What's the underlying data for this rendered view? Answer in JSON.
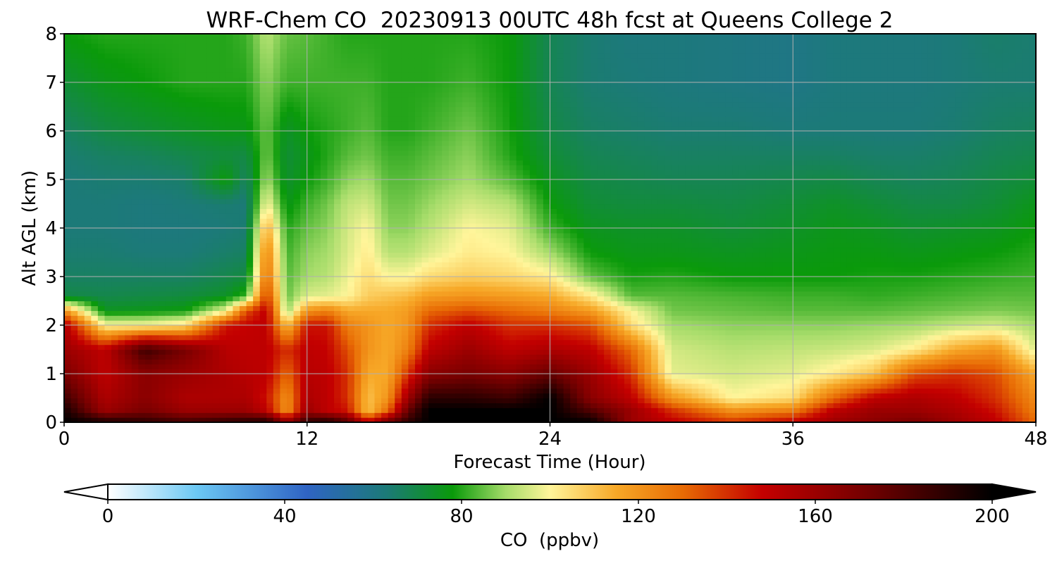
{
  "chart_data": {
    "type": "heatmap",
    "title": "WRF-Chem CO  20230913 00UTC 48h fcst at Queens College 2",
    "xlabel": "Forecast Time (Hour)",
    "ylabel": "Alt AGL (km)",
    "xlim": [
      0,
      48
    ],
    "ylim": [
      0,
      8
    ],
    "x_ticks": [
      0,
      12,
      24,
      36,
      48
    ],
    "y_ticks": [
      0,
      1,
      2,
      3,
      4,
      5,
      6,
      7,
      8
    ],
    "grid": true,
    "colorbar": {
      "label": "CO  (ppbv)",
      "range": [
        0,
        200
      ],
      "ticks": [
        0,
        40,
        80,
        120,
        160,
        200
      ],
      "extend": "both",
      "stops": [
        {
          "value": 0,
          "color": "#ffffff"
        },
        {
          "value": 20,
          "color": "#6cc8f4"
        },
        {
          "value": 45,
          "color": "#2f64c4"
        },
        {
          "value": 63,
          "color": "#1c7a78"
        },
        {
          "value": 78,
          "color": "#0a9a0a"
        },
        {
          "value": 90,
          "color": "#a6dc6a"
        },
        {
          "value": 100,
          "color": "#fff59a"
        },
        {
          "value": 115,
          "color": "#f7a827"
        },
        {
          "value": 130,
          "color": "#e86b04"
        },
        {
          "value": 148,
          "color": "#c40000"
        },
        {
          "value": 172,
          "color": "#720000"
        },
        {
          "value": 200,
          "color": "#000000"
        }
      ]
    },
    "profile_hours": [
      0,
      2,
      4,
      6,
      8,
      9,
      10,
      11,
      12,
      13,
      14,
      15,
      16,
      17,
      18,
      20,
      22,
      24,
      26,
      28,
      30,
      33,
      36,
      38,
      40,
      42,
      44,
      46,
      48
    ],
    "profile_heights_km": [
      0,
      0.25,
      0.5,
      1,
      1.5,
      2,
      2.3,
      2.6,
      3,
      3.5,
      4,
      4.5,
      5,
      5.5,
      6,
      7,
      8
    ],
    "profiles": [
      [
        200,
        195,
        185,
        170,
        160,
        155,
        120,
        70,
        66,
        64,
        63,
        63,
        63,
        64,
        66,
        72,
        78
      ],
      [
        195,
        160,
        155,
        150,
        150,
        100,
        75,
        69,
        66,
        64,
        63,
        63,
        64,
        66,
        70,
        76,
        80
      ],
      [
        190,
        170,
        165,
        165,
        185,
        100,
        76,
        70,
        66,
        63,
        62,
        62,
        64,
        67,
        72,
        78,
        80
      ],
      [
        185,
        160,
        155,
        160,
        170,
        105,
        78,
        71,
        66,
        63,
        62,
        63,
        65,
        69,
        74,
        80,
        80
      ],
      [
        190,
        160,
        155,
        155,
        152,
        145,
        98,
        74,
        69,
        65,
        63,
        64,
        78,
        71,
        76,
        80,
        80
      ],
      [
        192,
        160,
        155,
        152,
        150,
        148,
        135,
        82,
        71,
        66,
        64,
        63,
        66,
        70,
        76,
        80,
        82
      ],
      [
        195,
        150,
        145,
        150,
        150,
        150,
        150,
        140,
        130,
        125,
        115,
        100,
        90,
        86,
        85,
        88,
        92
      ],
      [
        165,
        120,
        120,
        130,
        140,
        110,
        88,
        85,
        84,
        82,
        80,
        76,
        73,
        72,
        74,
        82,
        85
      ],
      [
        190,
        160,
        155,
        152,
        150,
        145,
        120,
        96,
        90,
        88,
        85,
        82,
        78,
        76,
        78,
        82,
        84
      ],
      [
        195,
        150,
        150,
        150,
        148,
        145,
        125,
        97,
        92,
        90,
        88,
        86,
        82,
        80,
        80,
        82,
        82
      ],
      [
        180,
        145,
        140,
        140,
        135,
        125,
        115,
        100,
        98,
        96,
        95,
        93,
        88,
        84,
        82,
        82,
        80
      ],
      [
        150,
        110,
        110,
        115,
        120,
        120,
        115,
        108,
        105,
        102,
        100,
        95,
        90,
        86,
        84,
        82,
        80
      ],
      [
        175,
        130,
        120,
        115,
        115,
        115,
        115,
        110,
        100,
        92,
        88,
        86,
        84,
        82,
        80,
        80,
        80
      ],
      [
        190,
        175,
        160,
        140,
        125,
        120,
        118,
        112,
        100,
        92,
        88,
        86,
        84,
        82,
        80,
        80,
        80
      ],
      [
        200,
        200,
        190,
        165,
        150,
        140,
        130,
        118,
        105,
        96,
        92,
        89,
        86,
        84,
        82,
        80,
        80
      ],
      [
        200,
        200,
        190,
        170,
        160,
        150,
        135,
        120,
        108,
        102,
        100,
        95,
        90,
        88,
        86,
        82,
        80
      ],
      [
        200,
        200,
        185,
        165,
        150,
        140,
        130,
        118,
        106,
        100,
        97,
        92,
        84,
        80,
        79,
        78,
        78
      ],
      [
        200,
        200,
        200,
        175,
        155,
        140,
        125,
        115,
        102,
        90,
        82,
        78,
        75,
        72,
        70,
        68,
        68
      ],
      [
        200,
        180,
        165,
        160,
        150,
        135,
        118,
        103,
        85,
        78,
        75,
        72,
        70,
        68,
        66,
        64,
        64
      ],
      [
        160,
        160,
        150,
        140,
        130,
        105,
        100,
        84,
        79,
        76,
        74,
        71,
        69,
        67,
        65,
        63,
        62
      ],
      [
        150,
        140,
        120,
        97,
        95,
        90,
        86,
        84,
        80,
        76,
        74,
        71,
        68,
        66,
        64,
        62,
        62
      ],
      [
        140,
        120,
        100,
        95,
        92,
        88,
        85,
        83,
        78,
        75,
        72,
        70,
        68,
        66,
        64,
        61,
        61
      ],
      [
        150,
        125,
        105,
        97,
        93,
        88,
        84,
        82,
        78,
        76,
        74,
        72,
        69,
        66,
        63,
        60,
        60
      ],
      [
        160,
        150,
        130,
        102,
        94,
        88,
        84,
        82,
        78,
        77,
        76,
        74,
        70,
        66,
        63,
        62,
        62
      ],
      [
        165,
        160,
        150,
        110,
        96,
        89,
        84,
        81,
        79,
        77,
        75,
        72,
        68,
        65,
        63,
        62,
        62
      ],
      [
        170,
        160,
        155,
        135,
        102,
        90,
        85,
        82,
        79,
        76,
        73,
        70,
        67,
        65,
        63,
        62,
        62
      ],
      [
        160,
        155,
        150,
        140,
        115,
        93,
        86,
        83,
        80,
        77,
        74,
        70,
        68,
        66,
        64,
        63,
        63
      ],
      [
        150,
        145,
        140,
        135,
        120,
        95,
        87,
        84,
        81,
        78,
        75,
        72,
        70,
        68,
        66,
        64,
        65
      ],
      [
        130,
        125,
        122,
        115,
        96,
        90,
        86,
        84,
        82,
        80,
        78,
        76,
        72,
        69,
        67,
        64,
        64
      ]
    ]
  }
}
